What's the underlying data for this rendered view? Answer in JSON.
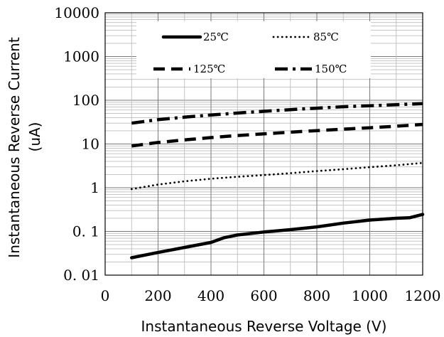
{
  "chart_data": {
    "type": "line",
    "xlabel": "Instantaneous Reverse Voltage (V)",
    "ylabel_line1": "Instantaneous Reverse Current",
    "ylabel_line2": "(uA)",
    "x_scale": "linear",
    "y_scale": "log",
    "xlim": [
      0,
      1200
    ],
    "ylim": [
      0.01,
      10000
    ],
    "x_ticks": [
      0,
      200,
      400,
      600,
      800,
      1000,
      1200
    ],
    "x_tick_labels": [
      "0",
      "200",
      "400",
      "600",
      "800",
      "1000",
      "1200"
    ],
    "y_ticks": [
      0.01,
      0.1,
      1,
      10,
      100,
      1000,
      10000
    ],
    "y_tick_labels": [
      "0. 01",
      "0. 1",
      "1",
      "10",
      "100",
      "1000",
      "10000"
    ],
    "grid": true,
    "legend_position": "top",
    "series": [
      {
        "name": "25℃",
        "style": "solid",
        "x": [
          100,
          200,
          300,
          400,
          450,
          500,
          600,
          700,
          800,
          900,
          1000,
          1100,
          1150,
          1200
        ],
        "y": [
          0.025,
          0.033,
          0.043,
          0.056,
          0.072,
          0.083,
          0.097,
          0.11,
          0.127,
          0.155,
          0.182,
          0.2,
          0.205,
          0.245
        ]
      },
      {
        "name": "85℃",
        "style": "dotted",
        "x": [
          100,
          200,
          300,
          400,
          500,
          600,
          700,
          800,
          900,
          1000,
          1100,
          1200
        ],
        "y": [
          0.93,
          1.18,
          1.4,
          1.6,
          1.78,
          1.95,
          2.15,
          2.4,
          2.65,
          2.95,
          3.25,
          3.7
        ]
      },
      {
        "name": "125℃",
        "style": "dashed",
        "x": [
          100,
          200,
          300,
          400,
          500,
          600,
          700,
          800,
          900,
          1000,
          1100,
          1200
        ],
        "y": [
          9.0,
          10.8,
          12.4,
          14.0,
          15.6,
          17.0,
          18.6,
          20.2,
          21.8,
          23.5,
          25.5,
          28.0
        ]
      },
      {
        "name": "150℃",
        "style": "dashdot",
        "x": [
          100,
          200,
          300,
          400,
          500,
          600,
          700,
          800,
          900,
          1000,
          1100,
          1200
        ],
        "y": [
          30,
          36,
          41,
          46,
          51,
          56,
          61,
          66,
          71,
          75,
          79,
          84
        ]
      }
    ]
  }
}
